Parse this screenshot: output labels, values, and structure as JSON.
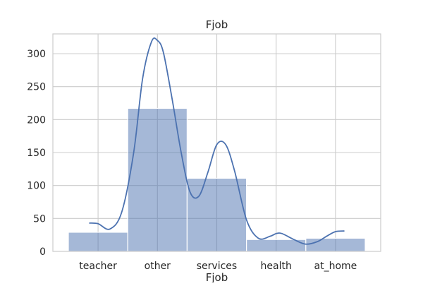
{
  "chart_data": {
    "type": "bar",
    "title": "Fjob",
    "xlabel": "Fjob",
    "ylabel": "",
    "categories": [
      "teacher",
      "other",
      "services",
      "health",
      "at_home"
    ],
    "values": [
      29,
      217,
      111,
      18,
      20
    ],
    "ylim": [
      0,
      330
    ],
    "yticks": [
      0,
      50,
      100,
      150,
      200,
      250,
      300
    ],
    "kde_curve": {
      "x": [
        -0.15,
        0.0,
        0.2,
        0.4,
        0.6,
        0.75,
        0.9,
        1.0,
        1.1,
        1.25,
        1.4,
        1.55,
        1.7,
        1.85,
        2.0,
        2.15,
        2.3,
        2.5,
        2.7,
        2.9,
        3.0,
        3.1,
        3.3,
        3.5,
        3.7,
        3.85,
        4.0,
        4.15
      ],
      "y": [
        43,
        42,
        34,
        60,
        150,
        262,
        318,
        320,
        302,
        230,
        150,
        90,
        84,
        120,
        162,
        162,
        122,
        48,
        20,
        23,
        27,
        27,
        18,
        11,
        15,
        23,
        30,
        31
      ]
    },
    "grid": true,
    "bar_color": "#4c72b0",
    "bar_opacity": 0.5,
    "line_color": "#4c72b0",
    "legend": "none"
  }
}
